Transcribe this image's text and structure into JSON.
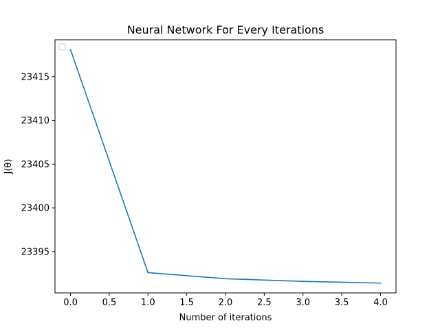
{
  "chart_data": {
    "type": "line",
    "title": "Neural Network For Every Iterations",
    "xlabel": "Number of iterations",
    "ylabel": "J(θ)",
    "x": [
      0,
      1,
      2,
      3,
      4
    ],
    "series": [
      {
        "values": [
          23418.1,
          23392.6,
          23391.9,
          23391.6,
          23391.4
        ],
        "color": "#1f77b4"
      }
    ],
    "xlim": [
      -0.2,
      4.2
    ],
    "ylim": [
      23390.28,
      23419.22
    ],
    "xticks": [
      0,
      0.5,
      1,
      1.5,
      2,
      2.5,
      3,
      3.5,
      4
    ],
    "xtick_labels": [
      "0.0",
      "0.5",
      "1.0",
      "1.5",
      "2.0",
      "2.5",
      "3.0",
      "3.5",
      "4.0"
    ],
    "yticks": [
      23395,
      23400,
      23405,
      23410,
      23415
    ],
    "ytick_labels": [
      "23395",
      "23400",
      "23405",
      "23410",
      "23415"
    ],
    "grid": false,
    "legend": {
      "placement": "upper-left",
      "entries": []
    }
  }
}
